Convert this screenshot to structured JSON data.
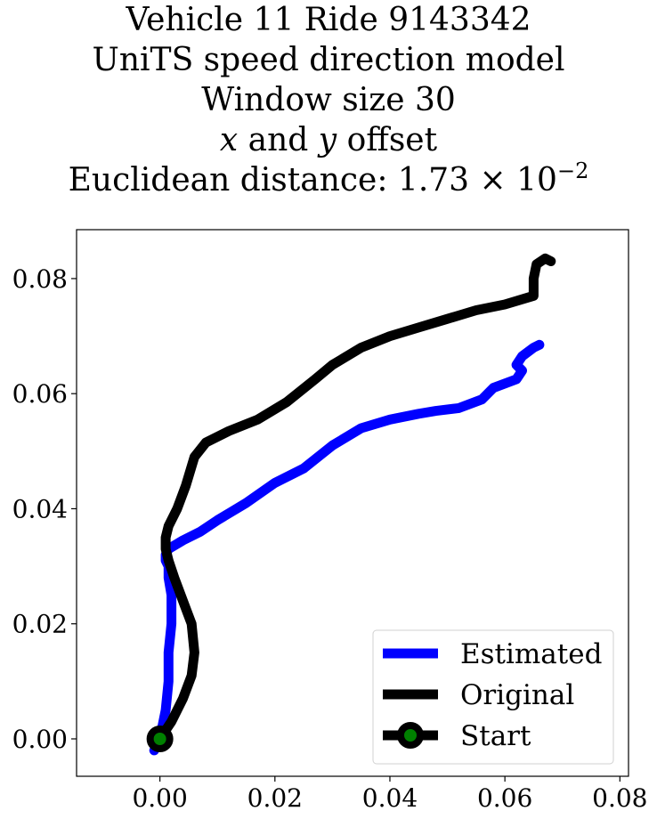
{
  "title": {
    "line1": "Vehicle 11 Ride 9143342",
    "line2": "UniTS speed direction model",
    "line3": "Window size 30",
    "line4_var1": "x",
    "line4_mid": " and ",
    "line4_var2": "y",
    "line4_end": " offset",
    "line5_prefix": "Euclidean distance: 1.73",
    "line5_times": " × 10",
    "line5_exp": "−2"
  },
  "chart_data": {
    "type": "line",
    "xlim": [
      -0.0145,
      0.0815
    ],
    "ylim": [
      -0.0065,
      0.0885
    ],
    "xticks": [
      0.0,
      0.02,
      0.04,
      0.06,
      0.08
    ],
    "xtick_labels": [
      "0.00",
      "0.02",
      "0.04",
      "0.06",
      "0.08"
    ],
    "yticks": [
      0.0,
      0.02,
      0.04,
      0.06,
      0.08
    ],
    "ytick_labels": [
      "0.00",
      "0.02",
      "0.04",
      "0.06",
      "0.08"
    ],
    "grid": false,
    "legend_position": "lower-right",
    "series": [
      {
        "name": "Estimated",
        "color": "#0000ff",
        "x": [
          -0.001,
          0.0,
          0.001,
          0.0015,
          0.0015,
          0.002,
          0.002,
          0.0015,
          0.0015,
          0.001,
          0.001,
          0.0015,
          0.004,
          0.007,
          0.01,
          0.015,
          0.02,
          0.025,
          0.03,
          0.035,
          0.04,
          0.045,
          0.048,
          0.052,
          0.056,
          0.058,
          0.062,
          0.063,
          0.062,
          0.063,
          0.065,
          0.066
        ],
        "y": [
          -0.002,
          0.0,
          0.005,
          0.01,
          0.015,
          0.02,
          0.025,
          0.028,
          0.03,
          0.031,
          0.032,
          0.033,
          0.0345,
          0.036,
          0.038,
          0.041,
          0.0445,
          0.047,
          0.051,
          0.054,
          0.0555,
          0.0565,
          0.057,
          0.0575,
          0.059,
          0.061,
          0.0625,
          0.064,
          0.065,
          0.0665,
          0.068,
          0.0685
        ]
      },
      {
        "name": "Original",
        "color": "#000000",
        "x": [
          0.0,
          0.002,
          0.004,
          0.0055,
          0.006,
          0.0055,
          0.004,
          0.0025,
          0.0015,
          0.001,
          0.001,
          0.0015,
          0.003,
          0.0045,
          0.006,
          0.008,
          0.012,
          0.017,
          0.022,
          0.027,
          0.03,
          0.035,
          0.04,
          0.045,
          0.05,
          0.055,
          0.06,
          0.065,
          0.065,
          0.0655,
          0.067,
          0.068
        ],
        "y": [
          0.0,
          0.003,
          0.007,
          0.011,
          0.015,
          0.02,
          0.024,
          0.028,
          0.031,
          0.033,
          0.035,
          0.037,
          0.04,
          0.044,
          0.049,
          0.0515,
          0.0535,
          0.0555,
          0.0585,
          0.0625,
          0.065,
          0.068,
          0.07,
          0.0715,
          0.073,
          0.0745,
          0.0755,
          0.077,
          0.08,
          0.0825,
          0.0835,
          0.083
        ]
      },
      {
        "name": "Start",
        "color": "#000000",
        "marker_color": "#008000",
        "x": [
          0.0
        ],
        "y": [
          0.0
        ]
      }
    ]
  }
}
